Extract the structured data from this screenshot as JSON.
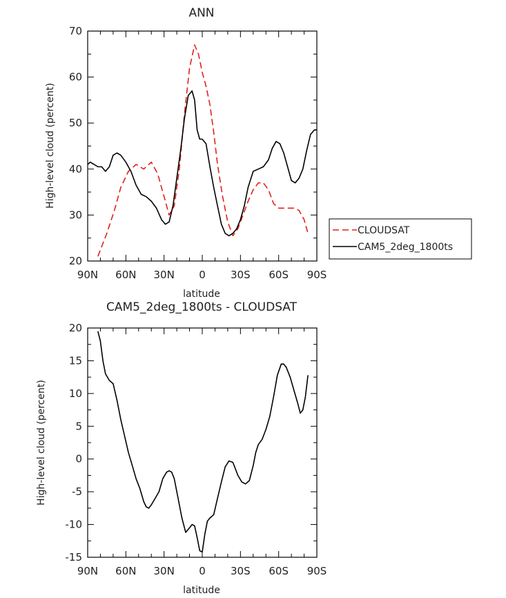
{
  "chart_data": [
    {
      "type": "line",
      "title": "ANN",
      "xlabel": "latitude",
      "ylabel": "High-level cloud (percent)",
      "xlim": [
        90,
        -90
      ],
      "ylim": [
        20,
        70
      ],
      "x_ticks": [
        {
          "value": 90,
          "label": "90N"
        },
        {
          "value": 60,
          "label": "60N"
        },
        {
          "value": 30,
          "label": "30N"
        },
        {
          "value": 0,
          "label": "0"
        },
        {
          "value": -30,
          "label": "30S"
        },
        {
          "value": -60,
          "label": "60S"
        },
        {
          "value": -90,
          "label": "90S"
        }
      ],
      "y_ticks": [
        20,
        30,
        40,
        50,
        60,
        70
      ],
      "legend": {
        "placement": "right"
      },
      "series": [
        {
          "name": "CLOUDSAT",
          "color": "#e0201b",
          "dash": "dashed",
          "x": [
            82,
            75,
            69,
            64,
            58,
            52,
            46,
            40,
            35,
            30,
            26,
            22,
            18,
            14,
            10,
            6,
            3,
            0,
            -3,
            -6,
            -9,
            -12,
            -16,
            -20,
            -24,
            -28,
            -32,
            -36,
            -40,
            -44,
            -48,
            -52,
            -56,
            -60,
            -64,
            -68,
            -72,
            -76,
            -80,
            -83
          ],
          "values": [
            21,
            26,
            31,
            36,
            39.5,
            41,
            40,
            41.5,
            39,
            34,
            30,
            32,
            40,
            52,
            62,
            67,
            65,
            61,
            58,
            54,
            48,
            41,
            34,
            28.5,
            25.5,
            27,
            30,
            33,
            35.5,
            37,
            37,
            35.5,
            32.5,
            31.5,
            31.5,
            31.5,
            31.5,
            31,
            29,
            26
          ]
        },
        {
          "name": "CAM5_2deg_1800ts",
          "color": "#000000",
          "dash": "solid",
          "x": [
            90,
            88,
            85,
            82,
            79,
            76,
            73,
            70,
            67,
            64,
            60,
            56,
            52,
            48,
            44,
            40,
            36,
            32,
            29,
            26,
            23,
            20,
            17,
            14,
            11,
            8,
            6,
            4,
            2,
            0,
            -3,
            -6,
            -9,
            -12,
            -15,
            -18,
            -21,
            -24,
            -27,
            -30,
            -33,
            -36,
            -40,
            -44,
            -48,
            -52,
            -55,
            -58,
            -61,
            -64,
            -67,
            -70,
            -73,
            -76,
            -79,
            -82,
            -85,
            -88,
            -90
          ],
          "values": [
            41,
            41.5,
            41,
            40.5,
            40.5,
            39.5,
            40.5,
            43,
            43.5,
            43,
            41.5,
            39.5,
            36.5,
            34.5,
            34,
            33,
            31.5,
            29,
            28,
            28.5,
            32,
            38,
            44,
            51,
            56,
            57,
            55,
            48.5,
            46.5,
            46.5,
            45.5,
            40.5,
            36,
            32,
            28,
            26,
            25.5,
            26,
            27,
            29,
            32,
            36,
            39.5,
            40,
            40.5,
            42,
            44.5,
            46,
            45.5,
            43.5,
            40.5,
            37.5,
            37,
            38,
            40,
            44,
            47.5,
            48.5,
            48.5
          ]
        }
      ]
    },
    {
      "type": "line",
      "title": "CAM5_2deg_1800ts - CLOUDSAT",
      "xlabel": "latitude",
      "ylabel": "High-level cloud (percent)",
      "xlim": [
        90,
        -90
      ],
      "ylim": [
        -15,
        20
      ],
      "x_ticks": [
        {
          "value": 90,
          "label": "90N"
        },
        {
          "value": 60,
          "label": "60N"
        },
        {
          "value": 30,
          "label": "30N"
        },
        {
          "value": 0,
          "label": "0"
        },
        {
          "value": -30,
          "label": "30S"
        },
        {
          "value": -60,
          "label": "60S"
        },
        {
          "value": -90,
          "label": "90S"
        }
      ],
      "y_ticks": [
        -15,
        -10,
        -5,
        0,
        5,
        10,
        15,
        20
      ],
      "series": [
        {
          "name": "CAM5_2deg_1800ts - CLOUDSAT",
          "color": "#000000",
          "dash": "solid",
          "x": [
            82,
            80,
            78,
            76,
            73,
            70,
            67,
            64,
            61,
            58,
            55,
            52,
            49,
            46,
            44,
            42,
            40,
            37,
            34,
            31,
            28,
            26,
            24,
            22,
            19,
            16,
            13,
            10,
            8,
            6,
            4,
            2,
            0,
            -2,
            -4,
            -6,
            -9,
            -12,
            -15,
            -18,
            -21,
            -24,
            -26,
            -28,
            -31,
            -34,
            -37,
            -40,
            -42,
            -44,
            -47,
            -50,
            -53,
            -56,
            -59,
            -62,
            -64,
            -66,
            -69,
            -72,
            -75,
            -77,
            -79,
            -81,
            -83
          ],
          "values": [
            19.5,
            18,
            15,
            13,
            12,
            11.5,
            9,
            6,
            3.5,
            1,
            -1,
            -3,
            -4.5,
            -6.5,
            -7.3,
            -7.5,
            -7,
            -6,
            -5,
            -3,
            -2,
            -1.8,
            -2,
            -3,
            -6,
            -9,
            -11.2,
            -10.5,
            -10,
            -10.2,
            -12,
            -14,
            -14.2,
            -11.5,
            -9.5,
            -9,
            -8.5,
            -6,
            -3.5,
            -1.2,
            -0.3,
            -0.5,
            -1.5,
            -2.5,
            -3.5,
            -3.8,
            -3.3,
            -1,
            1,
            2.2,
            3,
            4.5,
            6.5,
            9.5,
            12.8,
            14.5,
            14.5,
            14,
            12.5,
            10.5,
            8.5,
            7,
            7.5,
            9.5,
            12.8
          ]
        }
      ]
    }
  ]
}
